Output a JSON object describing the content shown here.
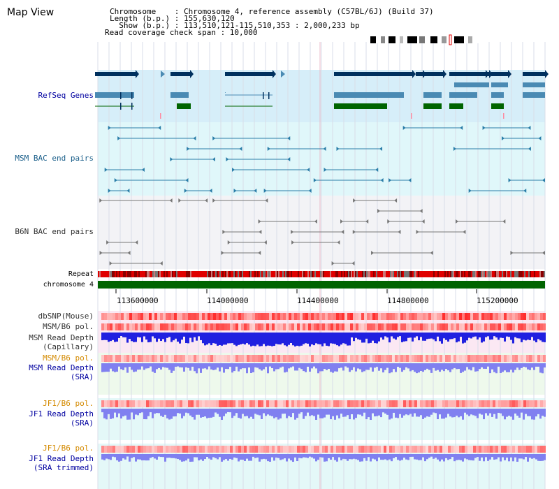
{
  "title": "Map View",
  "info": {
    "line1": "Chromosome    : Chromosome 4, reference assembly (C57BL/6J) (Build 37)",
    "line2": "Length (b.p.) : 155,630,120",
    "line3": "  Show (b.p.) : 113,510,121-115,510,353 : 2,000,233 bp",
    "line4": "Read coverage check span : 10,000"
  },
  "tracks": {
    "refseq": "RefSeq Genes",
    "msm_bac": "MSM BAC end pairs",
    "b6n_bac": "B6N BAC end pairs",
    "repeat": "Repeat",
    "chromosome": "chromosome 4",
    "dbsnp": "dbSNP(Mouse)",
    "msm_b6_pol": "MSM/B6 pol.",
    "msm_depth_cap1": "MSM Read Depth",
    "msm_depth_cap2": "(Capillary)",
    "msm_b6_pol2": "MSM/B6 pol.",
    "msm_depth_sra1": "MSM Read Depth",
    "msm_depth_sra2": "(SRA)",
    "jf1_b6_pol": "JF1/B6 pol.",
    "jf1_depth_sra1": "JF1 Read Depth",
    "jf1_depth_sra2": "(SRA)",
    "jf1_b6_pol2": "JF1/B6 pol.",
    "jf1_depth_trim1": "JF1 Read Depth",
    "jf1_depth_trim2": "(SRA trimmed)"
  },
  "axis_ticks": [
    "113600000",
    "114000000",
    "114400000",
    "114800000",
    "115200000"
  ],
  "colors": {
    "refseq_bg": "#d6eef9",
    "msm_bg": "#e0f7fa",
    "b6n_bg": "#f3f3f6",
    "gene_dark": "#00305e",
    "gene_mid": "#4a8ab3",
    "gene_green": "#006400",
    "bac_msm": "#2a7da8",
    "bac_b6n": "#777777",
    "chromosome": "#006400",
    "pol_red": "#e83030",
    "depth_blue": "#2020e0",
    "depth_light": "#8080f0"
  }
}
